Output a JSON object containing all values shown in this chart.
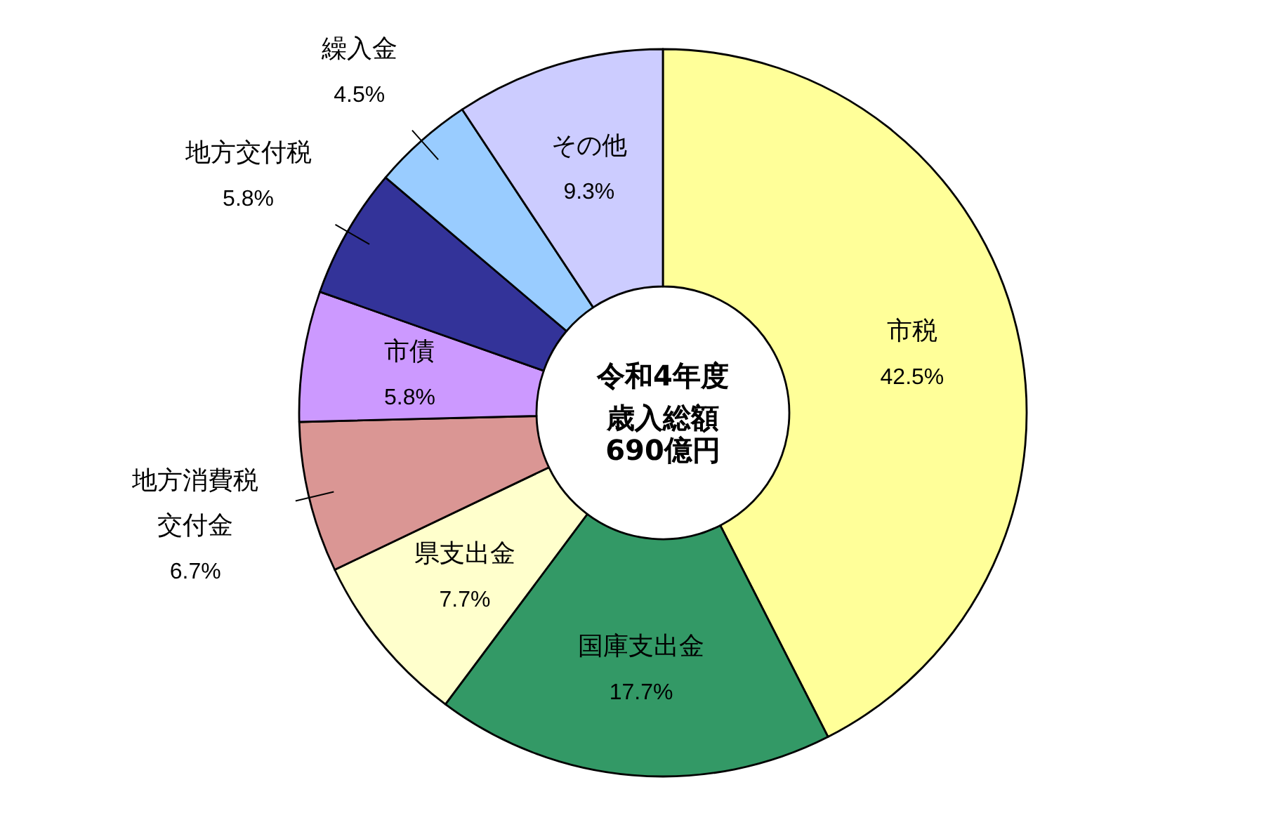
{
  "chart_data": {
    "type": "donut",
    "title": "令和4年度",
    "subtitle": "歳入総額690億円",
    "categories": [
      "市税",
      "国庫支出金",
      "県支出金",
      "地方消費税交付金",
      "市債",
      "地方交付税",
      "繰入金",
      "その他"
    ],
    "values": [
      42.5,
      17.7,
      7.7,
      6.7,
      5.8,
      5.8,
      4.5,
      9.3
    ],
    "colors": [
      "#ffff99",
      "#339966",
      "#ffffcc",
      "#da9694",
      "#cc99ff",
      "#333399",
      "#99ccff",
      "#ccccff"
    ],
    "value_labels": [
      "42.5%",
      "17.7%",
      "7.7%",
      "6.7%",
      "5.8%",
      "5.8%",
      "4.5%",
      "9.3%"
    ]
  }
}
